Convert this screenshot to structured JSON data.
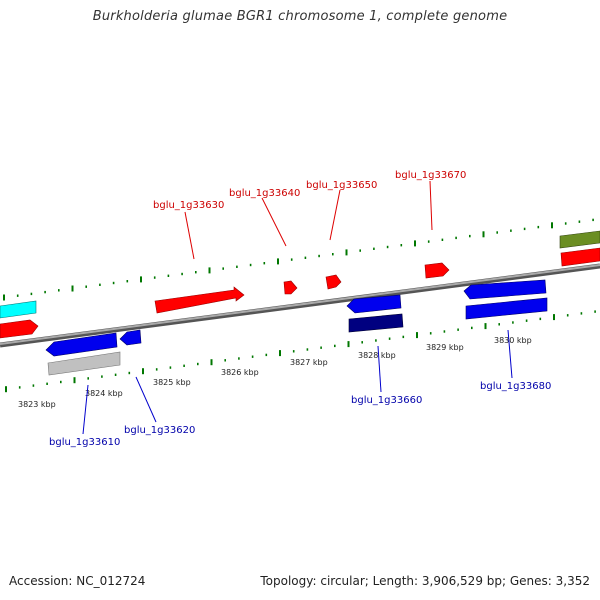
{
  "title": "Burkholderia glumae BGR1 chromosome 1, complete genome",
  "footer": {
    "accession": "Accession: NC_012724",
    "summary": "Topology: circular; Length: 3,906,529 bp; Genes: 3,352"
  },
  "colors": {
    "forward_gene": "#ff0000",
    "reverse_gene": "#0000ee",
    "reverse_gene_dark": "#000080",
    "pseudo_gene": "#c0c0c0",
    "cyan_feature": "#00ffff",
    "olive_feature": "#6b8e23",
    "tick": "#007700",
    "backbone": "#808080",
    "forward_label": "#cc0000",
    "reverse_label": "#0000aa"
  },
  "ruler": {
    "labels": [
      "3823 kbp",
      "3824 kbp",
      "3825 kbp",
      "3826 kbp",
      "3827 kbp",
      "3828 kbp",
      "3829 kbp",
      "3830 kbp"
    ]
  },
  "gene_labels": {
    "forward": [
      "bglu_1g33630",
      "bglu_1g33640",
      "bglu_1g33650",
      "bglu_1g33670"
    ],
    "reverse": [
      "bglu_1g33610",
      "bglu_1g33620",
      "bglu_1g33660",
      "bglu_1g33680"
    ]
  }
}
